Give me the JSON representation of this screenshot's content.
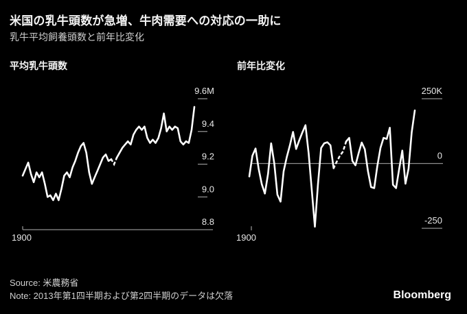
{
  "header": {
    "title": "米国の乳牛頭数が急増、牛肉需要への対応の一助に",
    "subtitle": "乳牛平均飼養頭数と前年比変化"
  },
  "colors": {
    "background": "#000000",
    "line": "#ffffff",
    "axis": "#8f8f8f",
    "tick_label": "#e8e8e8"
  },
  "chart_data": [
    {
      "id": "average-dairy-cow-count",
      "type": "line",
      "title": "平均乳牛頭数",
      "x_first_tick_label": "1900",
      "legend_position": "none",
      "grid": "off",
      "ylim": [
        8.8,
        9.6
      ],
      "y_ticks": [
        {
          "label": "9.6M",
          "value": 9.6,
          "line": "short"
        },
        {
          "label": "9.4",
          "value": 9.4,
          "line": "short"
        },
        {
          "label": "9.2",
          "value": 9.2,
          "line": "short"
        },
        {
          "label": "9.0",
          "value": 9.0,
          "line": "short"
        },
        {
          "label": "8.8",
          "value": 8.8,
          "line": "full"
        }
      ],
      "values": [
        9.13,
        9.17,
        9.21,
        9.14,
        9.09,
        9.15,
        9.12,
        9.15,
        9.08,
        9.0,
        9.01,
        8.98,
        9.02,
        8.98,
        9.05,
        9.13,
        9.15,
        9.12,
        9.18,
        9.22,
        9.27,
        9.31,
        9.33,
        9.27,
        9.15,
        9.08,
        9.12,
        9.16,
        9.2,
        9.24,
        9.26,
        9.22,
        9.23,
        9.2,
        9.24,
        9.27,
        9.3,
        9.32,
        9.34,
        9.32,
        9.38,
        9.41,
        9.43,
        9.41,
        9.43,
        9.36,
        9.33,
        9.35,
        9.33,
        9.36,
        9.42,
        9.51,
        9.4,
        9.43,
        9.41,
        9.43,
        9.42,
        9.34,
        9.32,
        9.34,
        9.33,
        9.41,
        9.55
      ],
      "dashed_ranges": [
        [
          32,
          34
        ]
      ]
    },
    {
      "id": "year-over-year-change",
      "type": "line",
      "title": "前年比変化",
      "x_first_tick_label": "1900",
      "legend_position": "none",
      "grid": "off",
      "ylim": [
        -250,
        250
      ],
      "y_ticks": [
        {
          "label": "250K",
          "value": 250,
          "line": "short"
        },
        {
          "label": "0",
          "value": 0,
          "line": "full"
        },
        {
          "label": "-250",
          "value": -250,
          "line": "short"
        }
      ],
      "values": [
        -50,
        30,
        58,
        -20,
        -80,
        -116,
        -40,
        78,
        0,
        -120,
        -147,
        -30,
        25,
        70,
        122,
        56,
        90,
        120,
        148,
        40,
        -100,
        -244,
        -80,
        60,
        78,
        82,
        70,
        -18,
        7,
        30,
        46,
        85,
        99,
        10,
        -7,
        40,
        81,
        55,
        -30,
        -91,
        -95,
        -10,
        60,
        99,
        95,
        138,
        -82,
        -95,
        -20,
        50,
        -78,
        -20,
        121,
        205
      ],
      "dashed_ranges": [
        [
          27,
          31
        ]
      ]
    }
  ],
  "footer": {
    "source": "Source: 米農務省",
    "note": "Note: 2013年第1四半期および第2四半期のデータは欠落",
    "logo": "Bloomberg"
  }
}
